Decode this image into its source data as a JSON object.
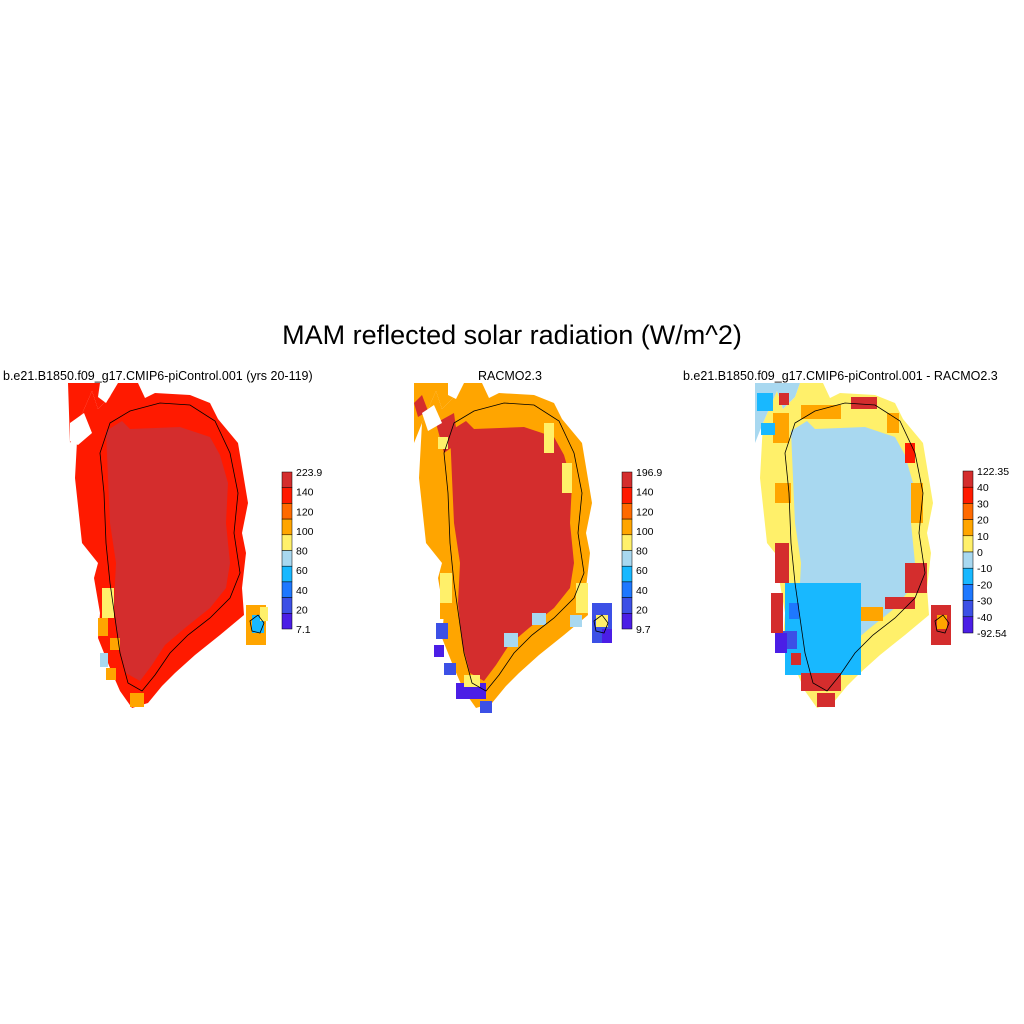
{
  "title": "MAM reflected solar radiation (W/m^2)",
  "panels": [
    {
      "title": "b.e21.B1850.f09_g17.CMIP6-piControl.001 (yrs 20-119)",
      "colorbar": {
        "labels": [
          "223.9",
          "140",
          "120",
          "100",
          "80",
          "60",
          "40",
          "20",
          "7.1"
        ],
        "colors": [
          "#d42d2d",
          "#ff1a00",
          "#ff6a00",
          "#ffa500",
          "#fff06a",
          "#a8d8f0",
          "#18b8ff",
          "#1e78ff",
          "#3c50e6",
          "#4b1ee6"
        ]
      }
    },
    {
      "title": "RACMO2.3",
      "colorbar": {
        "labels": [
          "196.9",
          "140",
          "120",
          "100",
          "80",
          "60",
          "40",
          "20",
          "9.7"
        ],
        "colors": [
          "#d42d2d",
          "#ff1a00",
          "#ff6a00",
          "#ffa500",
          "#fff06a",
          "#a8d8f0",
          "#18b8ff",
          "#1e78ff",
          "#3c50e6",
          "#4b1ee6"
        ]
      }
    },
    {
      "title": "b.e21.B1850.f09_g17.CMIP6-piControl.001 - RACMO2.3",
      "colorbar": {
        "labels": [
          "122.35",
          "40",
          "30",
          "20",
          "10",
          "0",
          "-10",
          "-20",
          "-30",
          "-40",
          "-92.54"
        ],
        "colors": [
          "#d42d2d",
          "#ff1a00",
          "#ff6a00",
          "#ffa500",
          "#fff06a",
          "#a8d8f0",
          "#18b8ff",
          "#1e78ff",
          "#3c50e6",
          "#4b1ee6"
        ]
      }
    }
  ]
}
